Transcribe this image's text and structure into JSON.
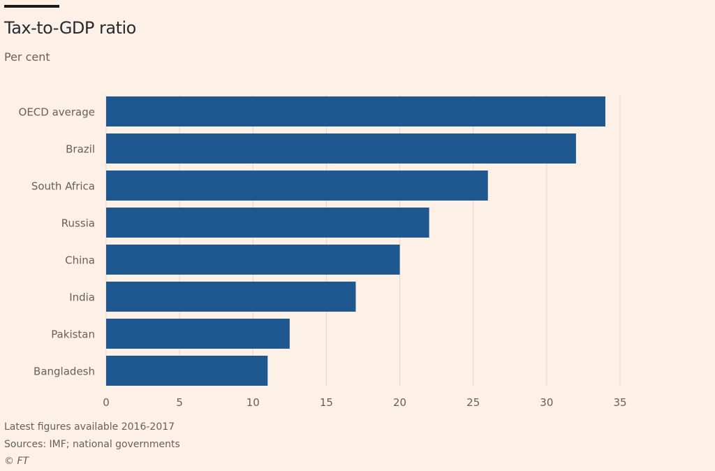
{
  "header": {
    "title": "Tax-to-GDP ratio",
    "subtitle": "Per cent"
  },
  "footer": {
    "note": "Latest figures available 2016-2017",
    "sources": "Sources: IMF; national governments",
    "copyright": "© FT"
  },
  "colors": {
    "bar": "#1f5790",
    "background": "#fdf0e6",
    "grid": "#e3d7cf",
    "label": "#66605c"
  },
  "chart_data": {
    "type": "bar",
    "orientation": "horizontal",
    "title": "Tax-to-GDP ratio",
    "subtitle": "Per cent",
    "xlabel": "",
    "ylabel": "",
    "categories": [
      "OECD average",
      "Brazil",
      "South Africa",
      "Russia",
      "China",
      "India",
      "Pakistan",
      "Bangladesh"
    ],
    "values": [
      34,
      32,
      26,
      22,
      20,
      17,
      12.5,
      11
    ],
    "xlim": [
      0,
      35
    ],
    "xticks": [
      0,
      5,
      10,
      15,
      20,
      25,
      30,
      35
    ],
    "grid": true
  }
}
